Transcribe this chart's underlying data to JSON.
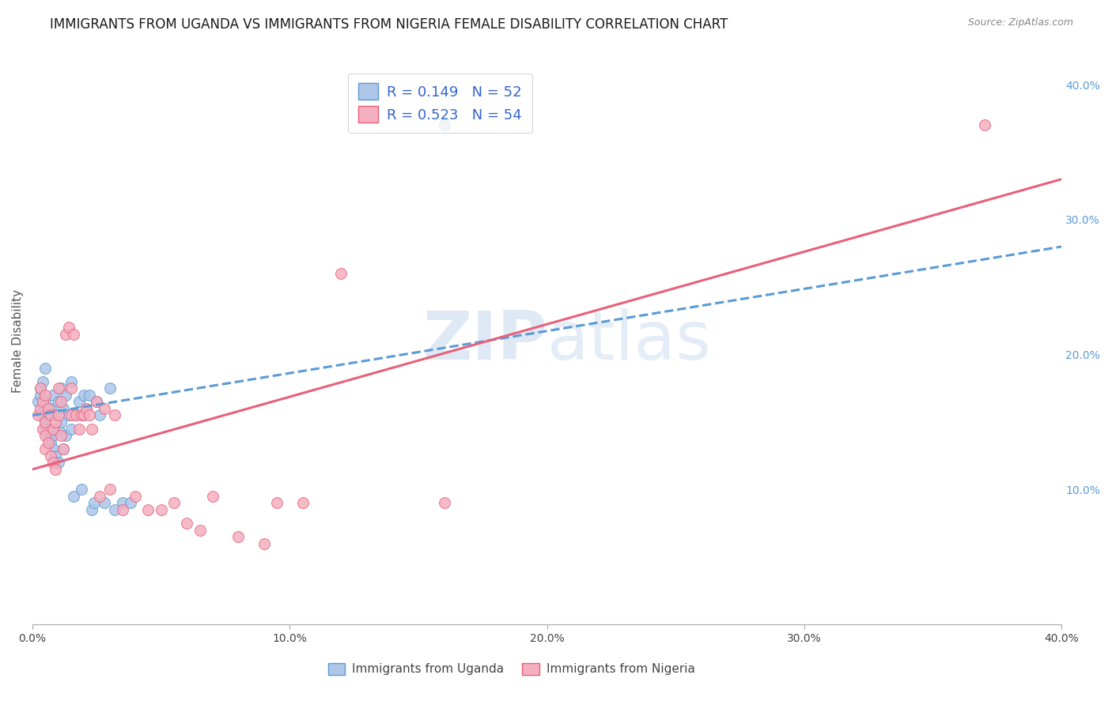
{
  "title": "IMMIGRANTS FROM UGANDA VS IMMIGRANTS FROM NIGERIA FEMALE DISABILITY CORRELATION CHART",
  "source": "Source: ZipAtlas.com",
  "ylabel": "Female Disability",
  "xlim": [
    0.0,
    0.4
  ],
  "ylim": [
    0.0,
    0.42
  ],
  "xtick_vals": [
    0.0,
    0.1,
    0.2,
    0.3,
    0.4
  ],
  "ytick_vals_right": [
    0.1,
    0.2,
    0.3,
    0.4
  ],
  "watermark": "ZIPatlas",
  "uganda_color": "#aec6e8",
  "nigeria_color": "#f4afc0",
  "uganda_edge_color": "#5b9bd5",
  "nigeria_edge_color": "#e8607a",
  "uganda_line_color": "#5b9bd5",
  "nigeria_line_color": "#e8607a",
  "background_color": "#ffffff",
  "grid_color": "#d0d0d0",
  "legend_text_color": "#3366cc",
  "legend_r_uganda": "R = 0.149",
  "legend_n_uganda": "N = 52",
  "legend_r_nigeria": "R = 0.523",
  "legend_n_nigeria": "N = 54",
  "uganda_scatter_x": [
    0.002,
    0.003,
    0.003,
    0.004,
    0.004,
    0.004,
    0.005,
    0.005,
    0.005,
    0.005,
    0.005,
    0.006,
    0.006,
    0.006,
    0.007,
    0.007,
    0.007,
    0.008,
    0.008,
    0.008,
    0.009,
    0.009,
    0.01,
    0.01,
    0.01,
    0.011,
    0.011,
    0.012,
    0.012,
    0.013,
    0.013,
    0.014,
    0.015,
    0.015,
    0.016,
    0.017,
    0.018,
    0.019,
    0.02,
    0.02,
    0.021,
    0.022,
    0.023,
    0.024,
    0.025,
    0.026,
    0.028,
    0.03,
    0.032,
    0.035,
    0.038,
    0.16
  ],
  "uganda_scatter_y": [
    0.165,
    0.17,
    0.175,
    0.155,
    0.16,
    0.18,
    0.145,
    0.15,
    0.155,
    0.165,
    0.19,
    0.14,
    0.145,
    0.155,
    0.135,
    0.145,
    0.16,
    0.13,
    0.14,
    0.17,
    0.125,
    0.155,
    0.12,
    0.145,
    0.165,
    0.15,
    0.175,
    0.13,
    0.16,
    0.14,
    0.17,
    0.155,
    0.145,
    0.18,
    0.095,
    0.155,
    0.165,
    0.1,
    0.155,
    0.17,
    0.16,
    0.17,
    0.085,
    0.09,
    0.165,
    0.155,
    0.09,
    0.175,
    0.085,
    0.09,
    0.09,
    0.37
  ],
  "nigeria_scatter_x": [
    0.002,
    0.003,
    0.003,
    0.004,
    0.004,
    0.005,
    0.005,
    0.005,
    0.005,
    0.006,
    0.006,
    0.007,
    0.007,
    0.008,
    0.008,
    0.009,
    0.009,
    0.01,
    0.01,
    0.011,
    0.011,
    0.012,
    0.013,
    0.014,
    0.015,
    0.015,
    0.016,
    0.017,
    0.018,
    0.019,
    0.02,
    0.021,
    0.022,
    0.023,
    0.025,
    0.026,
    0.028,
    0.03,
    0.032,
    0.035,
    0.04,
    0.045,
    0.05,
    0.055,
    0.06,
    0.065,
    0.07,
    0.08,
    0.09,
    0.095,
    0.105,
    0.12,
    0.16,
    0.37
  ],
  "nigeria_scatter_y": [
    0.155,
    0.16,
    0.175,
    0.145,
    0.165,
    0.13,
    0.14,
    0.15,
    0.17,
    0.135,
    0.16,
    0.125,
    0.155,
    0.12,
    0.145,
    0.115,
    0.15,
    0.155,
    0.175,
    0.14,
    0.165,
    0.13,
    0.215,
    0.22,
    0.155,
    0.175,
    0.215,
    0.155,
    0.145,
    0.155,
    0.155,
    0.16,
    0.155,
    0.145,
    0.165,
    0.095,
    0.16,
    0.1,
    0.155,
    0.085,
    0.095,
    0.085,
    0.085,
    0.09,
    0.075,
    0.07,
    0.095,
    0.065,
    0.06,
    0.09,
    0.09,
    0.26,
    0.09,
    0.37
  ],
  "title_fontsize": 12,
  "axis_label_fontsize": 11,
  "tick_fontsize": 10,
  "legend_fontsize": 13,
  "right_tick_color": "#5b9bd5"
}
